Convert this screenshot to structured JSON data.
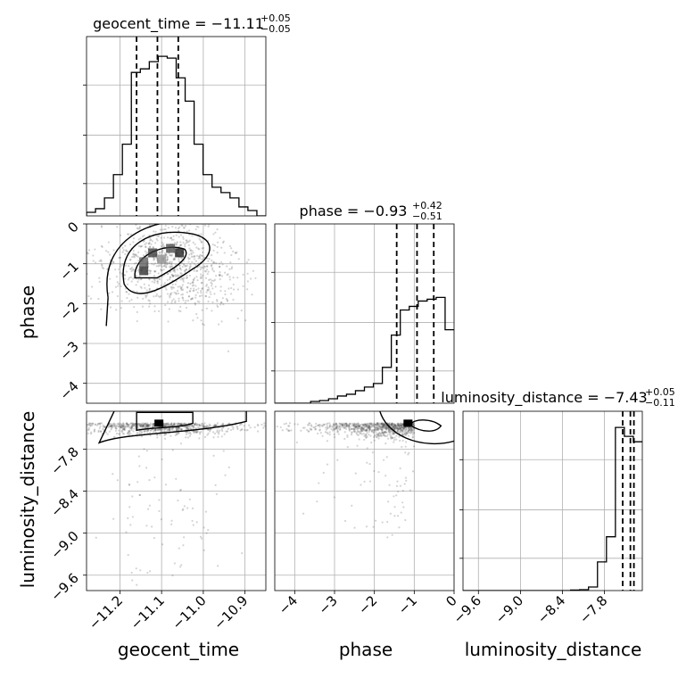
{
  "chart_data": {
    "type": "corner",
    "parameters": [
      "geocent_time",
      "phase",
      "luminosity_distance"
    ],
    "grid": true,
    "title_parts": [
      {
        "label": "geocent_time",
        "eq": " = ",
        "median": "−11.11",
        "upper": "+0.05",
        "lower": "−0.05"
      },
      {
        "label": "phase",
        "eq": " = ",
        "median": "−0.93",
        "upper": "+0.42",
        "lower": "−0.51"
      },
      {
        "label": "luminosity_distance",
        "eq": " = ",
        "median": "−7.43",
        "upper": "+0.05",
        "lower": "−0.11"
      }
    ],
    "axes": {
      "geocent_time": {
        "range": [
          -11.28,
          -10.85
        ],
        "ticks": [
          -11.2,
          -11.1,
          -11.0,
          -10.9
        ],
        "tick_labels": [
          "−11.2",
          "−11.1",
          "−11.0",
          "−10.9"
        ],
        "quantiles": [
          -11.16,
          -11.11,
          -11.06
        ]
      },
      "phase": {
        "range": [
          -4.5,
          0.0
        ],
        "ticks": [
          -4,
          -3,
          -2,
          -1,
          0
        ],
        "tick_labels": [
          "−4",
          "−3",
          "−2",
          "−1",
          "0"
        ],
        "quantiles": [
          -1.44,
          -0.93,
          -0.51
        ]
      },
      "luminosity_distance": {
        "range": [
          -9.82,
          -7.26
        ],
        "ticks": [
          -9.6,
          -9.0,
          -8.4,
          -7.8
        ],
        "tick_labels": [
          "−9.6",
          "−9.0",
          "−8.4",
          "−7.8"
        ],
        "quantiles": [
          -7.54,
          -7.43,
          -7.38
        ]
      }
    },
    "histograms": {
      "geocent_time": {
        "bin_start": -11.28,
        "bin_width": 0.0215,
        "counts": [
          0.02,
          0.04,
          0.1,
          0.23,
          0.4,
          0.8,
          0.82,
          0.86,
          0.89,
          0.88,
          0.77,
          0.64,
          0.4,
          0.23,
          0.16,
          0.13,
          0.1,
          0.05,
          0.03,
          0.0
        ]
      },
      "phase": {
        "bin_start": -4.5,
        "bin_width": 0.225,
        "counts": [
          0.0,
          0.0,
          0.0,
          0.0,
          0.01,
          0.015,
          0.025,
          0.04,
          0.05,
          0.07,
          0.09,
          0.11,
          0.2,
          0.38,
          0.52,
          0.54,
          0.57,
          0.58,
          0.59,
          0.41
        ]
      },
      "luminosity_distance": {
        "bin_start": -9.82,
        "bin_width": 0.128,
        "counts": [
          0.0,
          0.0,
          0.0,
          0.0,
          0.0,
          0.0,
          0.0,
          0.0,
          0.0,
          0.0,
          0.0,
          0.0,
          0.003,
          0.005,
          0.02,
          0.16,
          0.3,
          0.91,
          0.86,
          0.83
        ]
      }
    },
    "pair_modes": {
      "phase_vs_geocent_time": {
        "x": -11.1,
        "y": -0.95
      },
      "luminosity_distance_vs_geocent_time": {
        "x": -11.1,
        "y": -7.43
      },
      "luminosity_distance_vs_phase": {
        "x": -1.0,
        "y": -7.43
      }
    }
  }
}
